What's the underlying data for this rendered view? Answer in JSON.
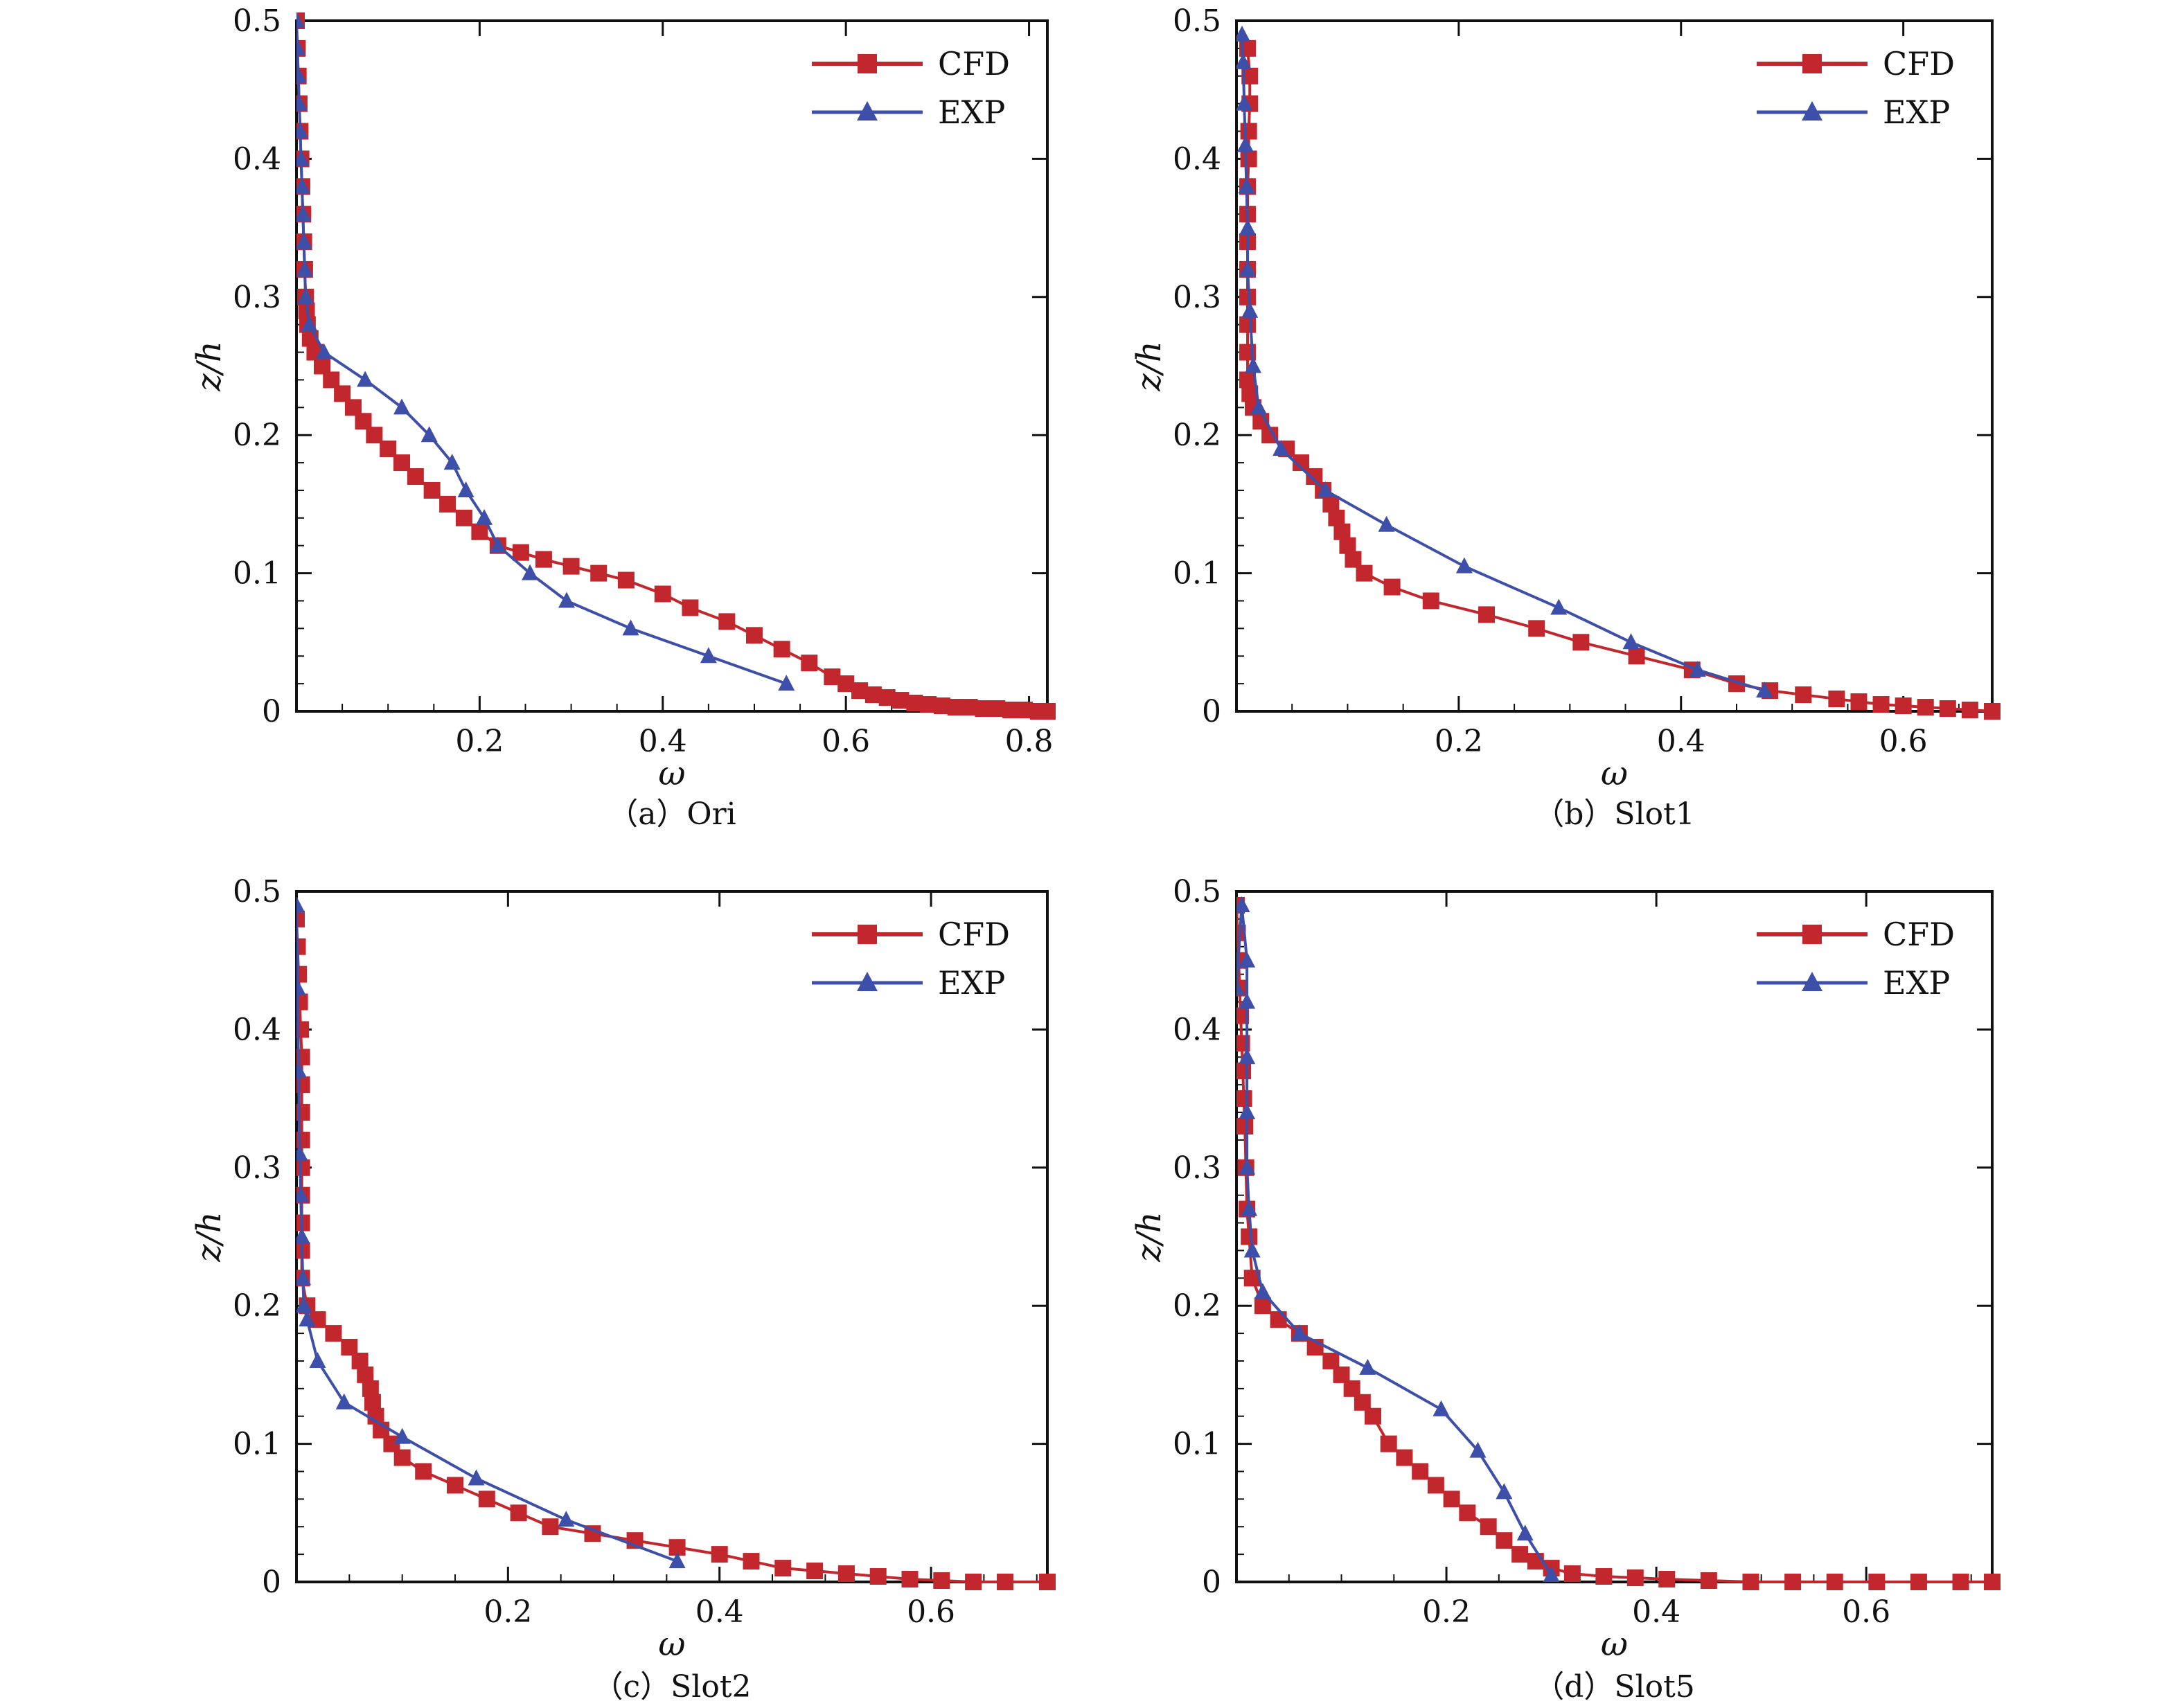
{
  "colors": {
    "cfd": "#c1272d",
    "exp": "#3d4fa8",
    "frame": "#111111"
  },
  "chart_data": [
    {
      "type": "line",
      "caption": "（a）Ori",
      "xlabel": "ω",
      "ylabel": "z/h",
      "xlim": [
        0.0,
        0.82
      ],
      "ylim": [
        0.0,
        0.5
      ],
      "xticks": [
        "0.2",
        "0.4",
        "0.6",
        "0.8"
      ],
      "xtick_values": [
        0.2,
        0.4,
        0.6,
        0.8
      ],
      "yticks": [
        "0",
        "0.1",
        "0.2",
        "0.3",
        "0.4",
        "0.5"
      ],
      "ytick_values": [
        0,
        0.1,
        0.2,
        0.3,
        0.4,
        0.5
      ],
      "legend": [
        "CFD",
        "EXP"
      ],
      "series": [
        {
          "name": "CFD",
          "x": [
            0.0,
            0.001,
            0.002,
            0.003,
            0.004,
            0.005,
            0.006,
            0.007,
            0.008,
            0.009,
            0.01,
            0.011,
            0.012,
            0.015,
            0.02,
            0.028,
            0.038,
            0.05,
            0.062,
            0.073,
            0.085,
            0.1,
            0.115,
            0.13,
            0.148,
            0.165,
            0.183,
            0.2,
            0.22,
            0.245,
            0.27,
            0.3,
            0.33,
            0.36,
            0.4,
            0.43,
            0.47,
            0.5,
            0.53,
            0.56,
            0.585,
            0.6,
            0.615,
            0.63,
            0.645,
            0.66,
            0.675,
            0.69,
            0.705,
            0.72,
            0.735,
            0.75,
            0.765,
            0.78,
            0.795,
            0.81,
            0.82
          ],
          "y": [
            0.5,
            0.48,
            0.46,
            0.44,
            0.42,
            0.4,
            0.38,
            0.36,
            0.34,
            0.32,
            0.3,
            0.29,
            0.28,
            0.27,
            0.26,
            0.25,
            0.24,
            0.23,
            0.22,
            0.21,
            0.2,
            0.19,
            0.18,
            0.17,
            0.16,
            0.15,
            0.14,
            0.13,
            0.12,
            0.115,
            0.11,
            0.105,
            0.1,
            0.095,
            0.085,
            0.075,
            0.065,
            0.055,
            0.045,
            0.035,
            0.025,
            0.02,
            0.015,
            0.012,
            0.01,
            0.008,
            0.006,
            0.005,
            0.004,
            0.003,
            0.003,
            0.002,
            0.002,
            0.001,
            0.001,
            0.0,
            0.0
          ]
        },
        {
          "name": "EXP",
          "x": [
            0.0,
            0.001,
            0.002,
            0.003,
            0.004,
            0.005,
            0.006,
            0.007,
            0.008,
            0.009,
            0.01,
            0.014,
            0.03,
            0.075,
            0.115,
            0.145,
            0.17,
            0.185,
            0.205,
            0.22,
            0.255,
            0.295,
            0.365,
            0.45,
            0.535
          ],
          "y": [
            0.5,
            0.48,
            0.46,
            0.44,
            0.42,
            0.4,
            0.38,
            0.36,
            0.34,
            0.32,
            0.3,
            0.28,
            0.26,
            0.24,
            0.22,
            0.2,
            0.18,
            0.16,
            0.14,
            0.12,
            0.1,
            0.08,
            0.06,
            0.04,
            0.02
          ]
        }
      ]
    },
    {
      "type": "line",
      "caption": "（b）Slot1",
      "xlabel": "ω",
      "ylabel": "z/h",
      "xlim": [
        0.0,
        0.68
      ],
      "ylim": [
        0.0,
        0.5
      ],
      "xticks": [
        "0.2",
        "0.4",
        "0.6"
      ],
      "xtick_values": [
        0.2,
        0.4,
        0.6
      ],
      "yticks": [
        "0",
        "0.1",
        "0.2",
        "0.3",
        "0.4",
        "0.5"
      ],
      "ytick_values": [
        0,
        0.1,
        0.2,
        0.3,
        0.4,
        0.5
      ],
      "legend": [
        "CFD",
        "EXP"
      ],
      "series": [
        {
          "name": "CFD",
          "x": [
            0.01,
            0.012,
            0.012,
            0.011,
            0.011,
            0.01,
            0.01,
            0.01,
            0.01,
            0.01,
            0.01,
            0.01,
            0.01,
            0.012,
            0.015,
            0.022,
            0.03,
            0.045,
            0.058,
            0.07,
            0.078,
            0.085,
            0.09,
            0.095,
            0.1,
            0.105,
            0.115,
            0.14,
            0.175,
            0.225,
            0.27,
            0.31,
            0.36,
            0.41,
            0.45,
            0.48,
            0.51,
            0.54,
            0.56,
            0.58,
            0.6,
            0.62,
            0.64,
            0.66,
            0.68
          ],
          "y": [
            0.48,
            0.46,
            0.44,
            0.42,
            0.4,
            0.38,
            0.36,
            0.34,
            0.32,
            0.3,
            0.28,
            0.26,
            0.24,
            0.23,
            0.22,
            0.21,
            0.2,
            0.19,
            0.18,
            0.17,
            0.16,
            0.15,
            0.14,
            0.13,
            0.12,
            0.11,
            0.1,
            0.09,
            0.08,
            0.07,
            0.06,
            0.05,
            0.04,
            0.03,
            0.02,
            0.015,
            0.012,
            0.009,
            0.007,
            0.005,
            0.004,
            0.003,
            0.002,
            0.001,
            0.0
          ]
        },
        {
          "name": "EXP",
          "x": [
            0.005,
            0.006,
            0.007,
            0.008,
            0.009,
            0.01,
            0.01,
            0.012,
            0.015,
            0.02,
            0.04,
            0.08,
            0.135,
            0.205,
            0.29,
            0.355,
            0.415,
            0.475
          ],
          "y": [
            0.49,
            0.47,
            0.44,
            0.41,
            0.38,
            0.35,
            0.32,
            0.29,
            0.25,
            0.22,
            0.19,
            0.16,
            0.135,
            0.105,
            0.075,
            0.05,
            0.03,
            0.015
          ]
        }
      ]
    },
    {
      "type": "line",
      "caption": "（c）Slot2",
      "xlabel": "ω",
      "ylabel": "z/h",
      "xlim": [
        0.0,
        0.71
      ],
      "ylim": [
        0.0,
        0.5
      ],
      "xticks": [
        "0.2",
        "0.4",
        "0.6"
      ],
      "xtick_values": [
        0.2,
        0.4,
        0.6
      ],
      "yticks": [
        "0",
        "0.1",
        "0.2",
        "0.3",
        "0.4",
        "0.5"
      ],
      "ytick_values": [
        0,
        0.1,
        0.2,
        0.3,
        0.4,
        0.5
      ],
      "legend": [
        "CFD",
        "EXP"
      ],
      "series": [
        {
          "name": "CFD",
          "x": [
            0.0,
            0.001,
            0.002,
            0.003,
            0.004,
            0.005,
            0.005,
            0.005,
            0.005,
            0.005,
            0.005,
            0.005,
            0.005,
            0.005,
            0.01,
            0.02,
            0.035,
            0.05,
            0.06,
            0.065,
            0.07,
            0.072,
            0.075,
            0.08,
            0.09,
            0.1,
            0.12,
            0.15,
            0.18,
            0.21,
            0.24,
            0.28,
            0.32,
            0.36,
            0.4,
            0.43,
            0.46,
            0.49,
            0.52,
            0.55,
            0.58,
            0.61,
            0.64,
            0.67,
            0.71
          ],
          "y": [
            0.48,
            0.46,
            0.44,
            0.42,
            0.4,
            0.38,
            0.36,
            0.34,
            0.32,
            0.3,
            0.28,
            0.26,
            0.24,
            0.22,
            0.2,
            0.19,
            0.18,
            0.17,
            0.16,
            0.15,
            0.14,
            0.13,
            0.12,
            0.11,
            0.1,
            0.09,
            0.08,
            0.07,
            0.06,
            0.05,
            0.04,
            0.035,
            0.03,
            0.025,
            0.02,
            0.015,
            0.01,
            0.008,
            0.006,
            0.004,
            0.002,
            0.001,
            0.0,
            0.0,
            0.0
          ]
        },
        {
          "name": "EXP",
          "x": [
            0.0,
            0.001,
            0.002,
            0.003,
            0.004,
            0.005,
            0.006,
            0.007,
            0.01,
            0.02,
            0.045,
            0.1,
            0.17,
            0.255,
            0.36
          ],
          "y": [
            0.49,
            0.43,
            0.37,
            0.31,
            0.28,
            0.25,
            0.22,
            0.2,
            0.19,
            0.16,
            0.13,
            0.105,
            0.075,
            0.045,
            0.015
          ]
        }
      ]
    },
    {
      "type": "line",
      "caption": "（d）Slot5",
      "xlabel": "ω",
      "ylabel": "z/h",
      "xlim": [
        0.0,
        0.72
      ],
      "ylim": [
        0.0,
        0.5
      ],
      "xticks": [
        "0.2",
        "0.4",
        "0.6"
      ],
      "xtick_values": [
        0.2,
        0.4,
        0.6
      ],
      "yticks": [
        "0",
        "0.1",
        "0.2",
        "0.3",
        "0.4",
        "0.5"
      ],
      "ytick_values": [
        0,
        0.1,
        0.2,
        0.3,
        0.4,
        0.5
      ],
      "legend": [
        "CFD",
        "EXP"
      ],
      "series": [
        {
          "name": "CFD",
          "x": [
            0.0,
            0.001,
            0.002,
            0.003,
            0.004,
            0.005,
            0.006,
            0.007,
            0.008,
            0.009,
            0.01,
            0.012,
            0.015,
            0.025,
            0.04,
            0.06,
            0.075,
            0.09,
            0.1,
            0.11,
            0.12,
            0.13,
            0.145,
            0.16,
            0.175,
            0.19,
            0.205,
            0.22,
            0.24,
            0.255,
            0.27,
            0.285,
            0.3,
            0.32,
            0.35,
            0.38,
            0.41,
            0.45,
            0.49,
            0.53,
            0.57,
            0.61,
            0.65,
            0.69,
            0.72
          ],
          "y": [
            0.49,
            0.47,
            0.45,
            0.43,
            0.41,
            0.39,
            0.37,
            0.35,
            0.33,
            0.3,
            0.27,
            0.25,
            0.22,
            0.2,
            0.19,
            0.18,
            0.17,
            0.16,
            0.15,
            0.14,
            0.13,
            0.12,
            0.1,
            0.09,
            0.08,
            0.07,
            0.06,
            0.05,
            0.04,
            0.03,
            0.02,
            0.015,
            0.01,
            0.006,
            0.004,
            0.003,
            0.002,
            0.001,
            0.0,
            0.0,
            0.0,
            0.0,
            0.0,
            0.0,
            0.0
          ]
        },
        {
          "name": "EXP",
          "x": [
            0.0,
            0.005,
            0.01,
            0.01,
            0.01,
            0.01,
            0.01,
            0.012,
            0.015,
            0.025,
            0.06,
            0.125,
            0.195,
            0.23,
            0.255,
            0.275,
            0.3
          ],
          "y": [
            0.43,
            0.49,
            0.45,
            0.42,
            0.38,
            0.34,
            0.3,
            0.27,
            0.24,
            0.21,
            0.18,
            0.155,
            0.125,
            0.095,
            0.065,
            0.035,
            0.005
          ]
        }
      ]
    }
  ]
}
